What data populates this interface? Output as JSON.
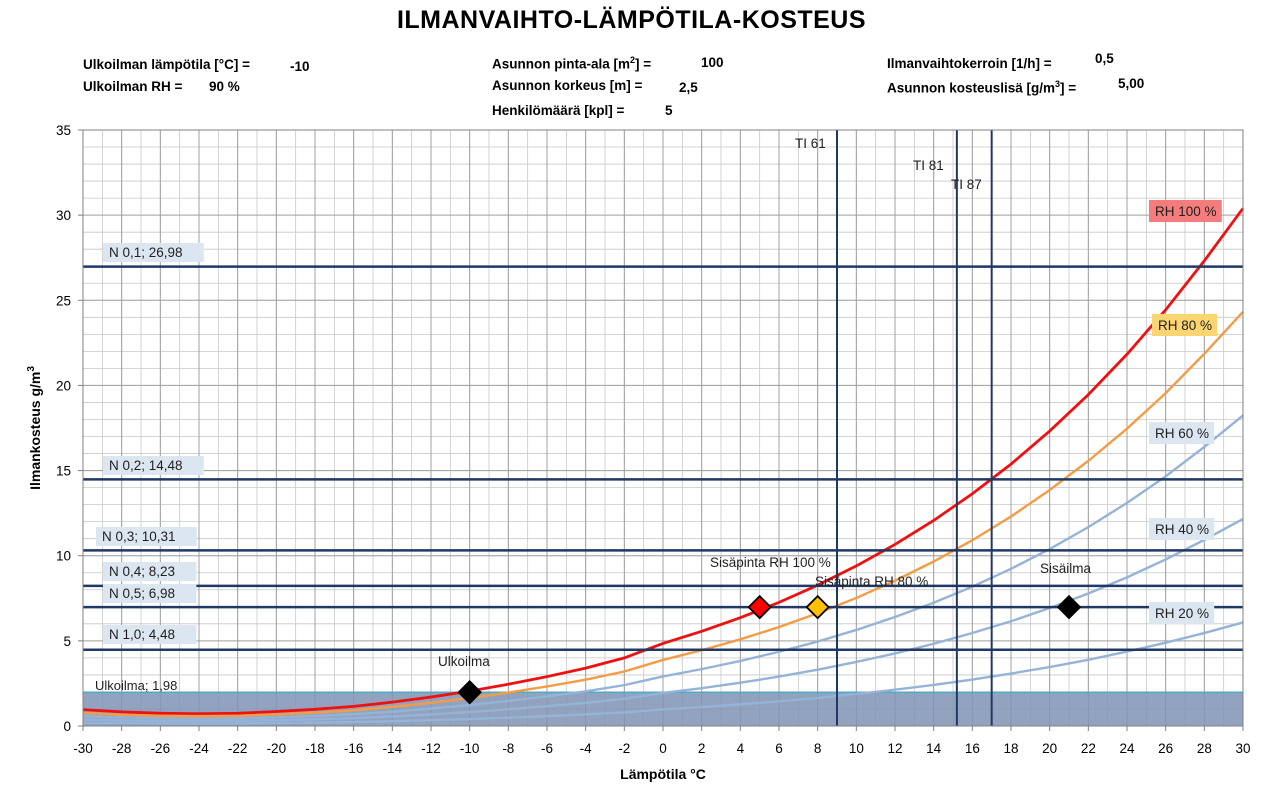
{
  "title": "ILMANVAIHTO-LÄMPÖTILA-KOSTEUS",
  "params": {
    "outdoor_temp_label": "Ulkoilman lämpötila  [°C] =",
    "outdoor_temp_value": "-10",
    "outdoor_rh_label": "Ulkoilman RH =",
    "outdoor_rh_value": "90 %",
    "area_label_pre": "Asunnon pinta-ala  [m",
    "area_label_sup": "2",
    "area_label_post": "] =",
    "area_value": "100",
    "height_label": "Asunnon korkeus [m] =",
    "height_value": "2,5",
    "persons_label": "Henkilömäärä [kpl] =",
    "persons_value": "5",
    "air_change_label": "Ilmanvaihtokerroin  [1/h] =",
    "air_change_value": "0,5",
    "moisture_label_pre": "Asunnon kosteuslisä [g/m",
    "moisture_label_sup": "3",
    "moisture_label_post": "] =",
    "moisture_value": "5,00"
  },
  "chart_data": {
    "type": "line",
    "xlabel": "Lämpötila °C",
    "ylabel": "Ilmankosteus g/m",
    "ylabel_sup": "3",
    "xlim": [
      -30,
      30
    ],
    "ylim": [
      0,
      35
    ],
    "xticks": [
      -30,
      -28,
      -26,
      -24,
      -22,
      -20,
      -18,
      -16,
      -14,
      -12,
      -10,
      -8,
      -6,
      -4,
      -2,
      0,
      2,
      4,
      6,
      8,
      10,
      12,
      14,
      16,
      18,
      20,
      22,
      24,
      26,
      28,
      30
    ],
    "yticks": [
      0,
      5,
      10,
      15,
      20,
      25,
      30,
      35
    ],
    "grid": true,
    "x": [
      -30,
      -28,
      -26,
      -24,
      -22,
      -20,
      -18,
      -16,
      -14,
      -12,
      -10,
      -8,
      -6,
      -4,
      -2,
      0,
      2,
      4,
      6,
      8,
      10,
      12,
      14,
      16,
      18,
      20,
      22,
      24,
      26,
      28,
      30
    ],
    "series": [
      {
        "name": "RH 100 %",
        "color": "#ee1111",
        "label_bg": "#f47c7c",
        "values": [
          0.96,
          0.83,
          0.75,
          0.72,
          0.75,
          0.85,
          0.98,
          1.15,
          1.4,
          1.7,
          2.05,
          2.45,
          2.9,
          3.4,
          4.0,
          4.85,
          5.56,
          6.36,
          7.26,
          8.27,
          9.4,
          10.66,
          12.07,
          13.64,
          15.38,
          17.32,
          19.46,
          21.83,
          24.44,
          27.32,
          30.4
        ]
      },
      {
        "name": "RH 80 %",
        "color": "#f39c45",
        "label_bg": "#fbd571",
        "values": [
          0.77,
          0.66,
          0.6,
          0.58,
          0.6,
          0.68,
          0.78,
          0.92,
          1.12,
          1.36,
          1.64,
          1.96,
          2.32,
          2.72,
          3.2,
          3.88,
          4.45,
          5.09,
          5.81,
          6.62,
          7.52,
          8.53,
          9.66,
          10.91,
          12.3,
          13.86,
          15.57,
          17.46,
          19.55,
          21.86,
          24.32
        ]
      },
      {
        "name": "RH 60 %",
        "color": "#95b3d7",
        "label_bg": "#dce6f1",
        "values": [
          0.58,
          0.5,
          0.45,
          0.43,
          0.45,
          0.51,
          0.59,
          0.69,
          0.84,
          1.02,
          1.23,
          1.47,
          1.74,
          2.04,
          2.4,
          2.91,
          3.34,
          3.82,
          4.36,
          4.96,
          5.64,
          6.4,
          7.24,
          8.18,
          9.23,
          10.39,
          11.68,
          13.1,
          14.66,
          16.39,
          18.24
        ]
      },
      {
        "name": "RH 40 %",
        "color": "#95b3d7",
        "label_bg": "#dce6f1",
        "values": [
          0.38,
          0.33,
          0.3,
          0.29,
          0.3,
          0.34,
          0.39,
          0.46,
          0.56,
          0.68,
          0.82,
          0.98,
          1.16,
          1.36,
          1.6,
          1.94,
          2.22,
          2.54,
          2.9,
          3.31,
          3.76,
          4.26,
          4.83,
          5.46,
          6.15,
          6.93,
          7.78,
          8.73,
          9.78,
          10.93,
          12.16
        ]
      },
      {
        "name": "RH 20 %",
        "color": "#95b3d7",
        "label_bg": "#dce6f1",
        "values": [
          0.19,
          0.17,
          0.15,
          0.14,
          0.15,
          0.17,
          0.2,
          0.23,
          0.28,
          0.34,
          0.41,
          0.49,
          0.58,
          0.68,
          0.8,
          0.97,
          1.11,
          1.27,
          1.45,
          1.65,
          1.88,
          2.13,
          2.41,
          2.73,
          3.08,
          3.46,
          3.89,
          4.37,
          4.89,
          5.46,
          6.08
        ]
      }
    ],
    "hlines": [
      {
        "label": "N 0,1; 26,98",
        "y": 26.98
      },
      {
        "label": "N 0,2; 14,48",
        "y": 14.48
      },
      {
        "label": "N 0,3; 10,31",
        "y": 10.31
      },
      {
        "label": "N 0,4; 8,23",
        "y": 8.23
      },
      {
        "label": "N 0,5; 6,98",
        "y": 6.98
      },
      {
        "label": "N 1,0; 4,48",
        "y": 4.48
      }
    ],
    "hline_color": "#1f3864",
    "vlines": [
      {
        "label": "TI 61",
        "x": 9
      },
      {
        "label": "TI 81",
        "x": 15.2
      },
      {
        "label": "TI 87",
        "x": 17
      }
    ],
    "vline_color": "#1f3864",
    "band": {
      "label": "Ulkoilma; 1,98",
      "y": 1.98,
      "color": "#7f93b5"
    },
    "points": [
      {
        "label": "Ulkoilma",
        "x": -10,
        "y": 1.98,
        "color": "#000000"
      },
      {
        "label": "Sisäpinta RH 100 %",
        "x": 5,
        "y": 6.98,
        "color": "#ff0000"
      },
      {
        "label": "Sisäpinta RH  80 %",
        "x": 8,
        "y": 6.98,
        "color": "#ffc000"
      },
      {
        "label": "Sisäilma",
        "x": 21,
        "y": 6.98,
        "color": "#000000"
      }
    ]
  }
}
